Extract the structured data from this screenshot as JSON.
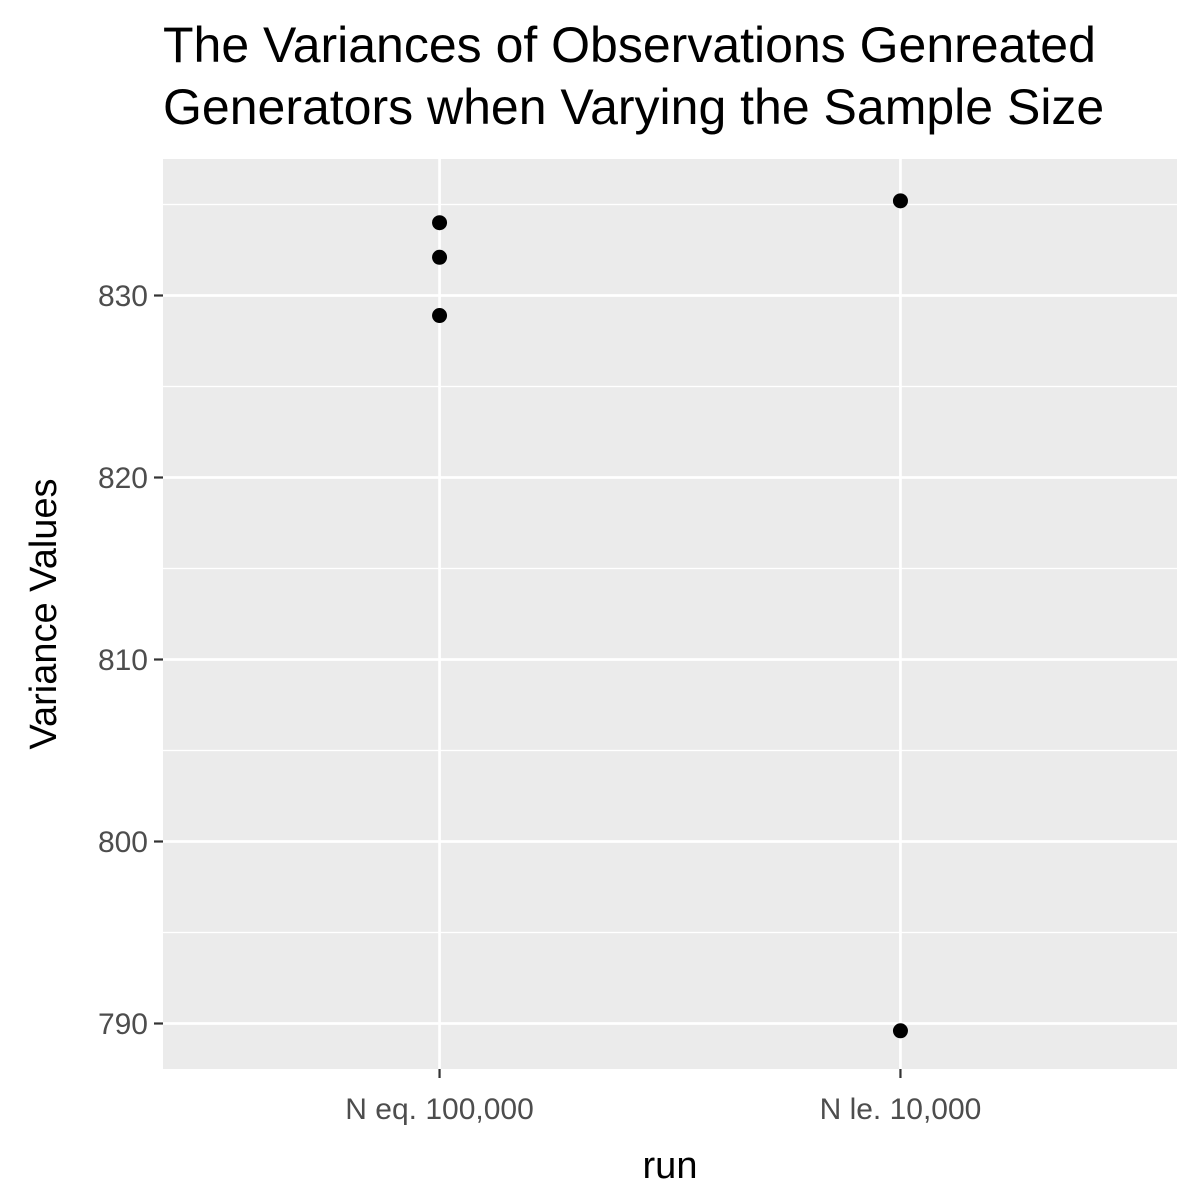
{
  "chart_data": {
    "type": "scatter",
    "title": "The Variances of Observations Genreated by Random Number Generators when Varying the Sample Size",
    "title_lines": [
      "The Variances of Observations Genreated",
      "Generators when Varying the Sample Size"
    ],
    "xlabel": "run",
    "ylabel": "Variance Values",
    "categories": [
      "N eq. 100,000",
      "N le. 10,000"
    ],
    "points": [
      {
        "x": "N eq. 100,000",
        "y": 834.0
      },
      {
        "x": "N eq. 100,000",
        "y": 832.1
      },
      {
        "x": "N eq. 100,000",
        "y": 828.9
      },
      {
        "x": "N le. 10,000",
        "y": 835.2
      },
      {
        "x": "N le. 10,000",
        "y": 789.6
      }
    ],
    "yticks": [
      790,
      800,
      810,
      820,
      830
    ],
    "ylim": [
      787.5,
      837.5
    ],
    "grid": true,
    "background": "#ebebeb",
    "point_color": "#000000"
  }
}
